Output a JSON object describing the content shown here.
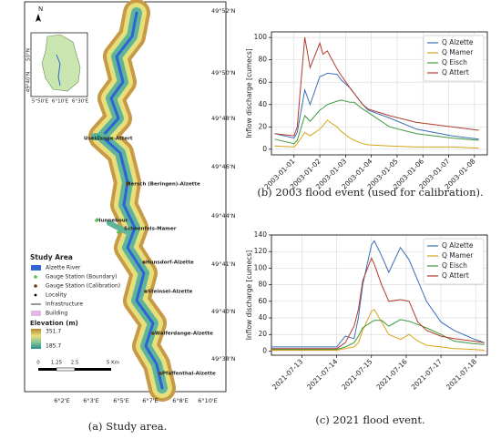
{
  "chart_data": [
    {
      "type": "line",
      "ylabel": "Inflow discharge [cumecs]",
      "x": [
        "2002-12-31T06:00",
        "2003-01-01T00:00",
        "2003-01-01T03:00",
        "2003-01-01T10:00",
        "2003-01-01T15:00",
        "2003-01-02T00:00",
        "2003-01-02T03:00",
        "2003-01-02T07:00",
        "2003-01-02T16:00",
        "2003-01-02T20:00",
        "2003-01-03T04:00",
        "2003-01-03T08:00",
        "2003-01-03T16:00",
        "2003-01-03T21:00",
        "2003-01-04T17:00",
        "2003-01-05T18:00",
        "2003-01-07T03:00",
        "2003-01-08T04:00"
      ],
      "series": [
        {
          "name": "Q Alzette",
          "color": "#3a6fb5",
          "values": [
            14,
            10,
            15,
            53,
            40,
            65,
            66,
            68,
            67,
            62,
            55,
            50,
            40,
            35,
            28,
            18,
            12,
            9
          ]
        },
        {
          "name": "Q Mamer",
          "color": "#d6a419",
          "values": [
            3,
            2,
            5,
            15,
            12,
            18,
            21,
            26,
            20,
            16,
            10,
            8,
            5,
            4,
            3,
            2,
            2,
            1
          ]
        },
        {
          "name": "Q Eisch",
          "color": "#3e9a3e",
          "values": [
            9,
            5,
            8,
            30,
            25,
            35,
            37,
            40,
            43,
            44,
            42,
            42,
            36,
            33,
            20,
            14,
            10,
            8
          ]
        },
        {
          "name": "Q Attert",
          "color": "#b23a2e",
          "values": [
            14,
            12,
            20,
            100,
            73,
            95,
            85,
            88,
            72,
            66,
            55,
            50,
            40,
            36,
            30,
            24,
            20,
            17
          ]
        }
      ],
      "xlim": [
        "2002-12-31T03:00",
        "2003-01-08T12:00"
      ],
      "xticks": [
        "2003-01-01",
        "2003-01-02",
        "2003-01-03",
        "2003-01-04",
        "2003-01-05",
        "2003-01-06",
        "2003-01-07",
        "2003-01-08"
      ],
      "ylim": [
        -5,
        105
      ],
      "yticks": [
        0,
        20,
        40,
        60,
        80,
        100
      ],
      "grid": true,
      "legend": "upper right",
      "caption": "(b) 2003 flood event (used for calibration)."
    },
    {
      "type": "line",
      "ylabel": "Inflow discharge [cumecs]",
      "x": [
        "2021-07-12T03:00",
        "2021-07-14T00:00",
        "2021-07-14T06:00",
        "2021-07-14T12:00",
        "2021-07-14T15:00",
        "2021-07-14T18:00",
        "2021-07-15T00:00",
        "2021-07-15T02:00",
        "2021-07-15T07:00",
        "2021-07-15T12:00",
        "2021-07-15T20:00",
        "2021-07-16T02:00",
        "2021-07-16T08:00",
        "2021-07-16T14:00",
        "2021-07-17T00:00",
        "2021-07-17T09:00",
        "2021-07-17T22:00",
        "2021-07-18T06:00"
      ],
      "series": [
        {
          "name": "Q Alzette",
          "color": "#3a6fb5",
          "values": [
            5,
            5,
            18,
            15,
            40,
            80,
            128,
            133,
            115,
            95,
            125,
            110,
            85,
            60,
            35,
            25,
            15,
            10
          ]
        },
        {
          "name": "Q Mamer",
          "color": "#d6a419",
          "values": [
            1,
            1,
            3,
            5,
            10,
            25,
            48,
            50,
            35,
            20,
            14,
            20,
            12,
            7,
            5,
            3,
            2,
            1
          ]
        },
        {
          "name": "Q Eisch",
          "color": "#3e9a3e",
          "values": [
            2,
            2,
            5,
            10,
            18,
            28,
            35,
            37,
            37,
            30,
            38,
            36,
            32,
            28,
            20,
            12,
            9,
            8
          ]
        },
        {
          "name": "Q Attert",
          "color": "#b23a2e",
          "values": [
            3,
            3,
            10,
            30,
            50,
            85,
            112,
            105,
            80,
            60,
            62,
            60,
            35,
            25,
            18,
            15,
            12,
            10
          ]
        }
      ],
      "xlim": [
        "2021-07-12T03:00",
        "2021-07-18T08:00"
      ],
      "xticks": [
        "2021-07-13",
        "2021-07-14",
        "2021-07-15",
        "2021-07-16",
        "2021-07-17",
        "2021-07-18"
      ],
      "ylim": [
        -5,
        140
      ],
      "yticks": [
        0,
        20,
        40,
        60,
        80,
        100,
        120,
        140
      ],
      "grid": true,
      "legend": "upper right",
      "caption": "(c) 2021 flood event."
    }
  ],
  "map": {
    "north": "N",
    "lat_labels": [
      "49°52'N",
      "49°50'N",
      "49°48'N",
      "49°46'N",
      "49°44'N",
      "49°41'N",
      "49°40'N",
      "49°38'N"
    ],
    "lon_labels": [
      "6°2'E",
      "6°3'E",
      "6°5'E",
      "6°7'E",
      "6°8'E",
      "6°10'E"
    ],
    "inset": {
      "lat": [
        "50°N",
        "49°40'N"
      ],
      "lon": [
        "5°50'E",
        "6°10'E",
        "6°30'E"
      ]
    },
    "places": [
      "Useldange-Attert",
      "Mersch (Beringen)-Alzette",
      "Hunnebour",
      "Schoenfels-Mamer",
      "Hunsdorf-Alzette",
      "Steinsel-Alzette",
      "Walferdange-Alzette",
      "Pfaffenthal-Alzette"
    ],
    "legend": {
      "title": "Study Area",
      "items": [
        "Alzette River",
        "Gauge Station (Boundary)",
        "Gauge Station (Calibration)",
        "Locality",
        "Infrastructure",
        "Building"
      ],
      "elevation": "Elevation (m)",
      "elev_max": "351.7",
      "elev_min": "185.7"
    },
    "scale": [
      "0",
      "1.25",
      "2.5",
      "5 Km"
    ],
    "caption": "(a) Study area."
  }
}
